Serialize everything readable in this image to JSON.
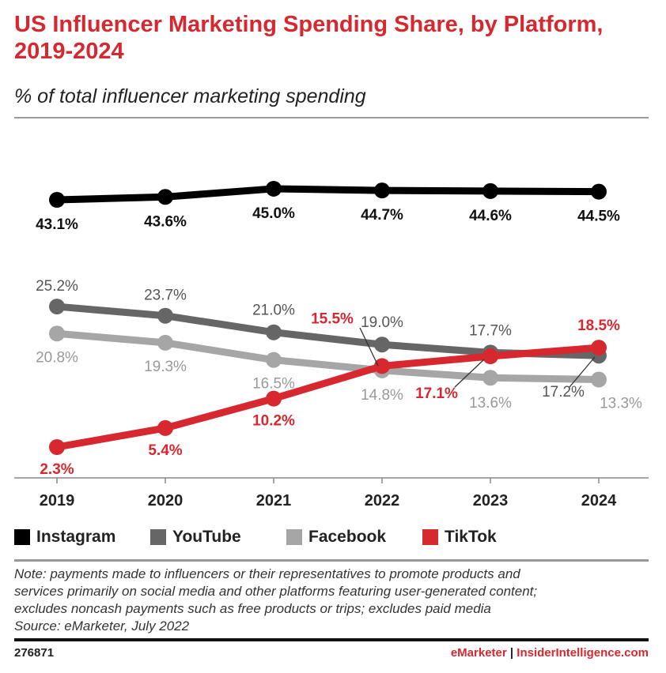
{
  "chart_data": {
    "type": "line",
    "title": "US Influencer Marketing Spending Share, by Platform, 2019-2024",
    "subtitle": "% of total influencer marketing spending",
    "categories": [
      "2019",
      "2020",
      "2021",
      "2022",
      "2023",
      "2024"
    ],
    "series": [
      {
        "name": "Instagram",
        "color": "#000000",
        "values": [
          43.1,
          43.6,
          45.0,
          44.7,
          44.6,
          44.5
        ],
        "labels": [
          "43.1%",
          "43.6%",
          "45.0%",
          "44.7%",
          "44.6%",
          "44.5%"
        ]
      },
      {
        "name": "YouTube",
        "color": "#666666",
        "values": [
          25.2,
          23.7,
          21.0,
          19.0,
          17.7,
          17.2
        ],
        "labels": [
          "25.2%",
          "23.7%",
          "21.0%",
          "19.0%",
          "17.7%",
          "17.2%"
        ]
      },
      {
        "name": "Facebook",
        "color": "#a6a6a6",
        "values": [
          20.8,
          19.3,
          16.5,
          14.8,
          13.6,
          13.3
        ],
        "labels": [
          "20.8%",
          "19.3%",
          "16.5%",
          "14.8%",
          "13.6%",
          "13.3%"
        ]
      },
      {
        "name": "TikTok",
        "color": "#d7282f",
        "values": [
          2.3,
          5.4,
          10.2,
          15.5,
          17.1,
          18.5
        ],
        "labels": [
          "2.3%",
          "5.4%",
          "10.2%",
          "15.5%",
          "17.1%",
          "18.5%"
        ]
      }
    ],
    "legend_position": "bottom",
    "grid": false,
    "axis_break": true
  },
  "note": [
    "Note: payments made to influencers or their representatives to promote products and",
    "services primarily on social media and other platforms featuring user-generated content;",
    "excludes noncash payments such as free products or trips; excludes paid media",
    "Source: eMarketer, July 2022"
  ],
  "footer": {
    "id": "276871",
    "brand": "eMarketer",
    "separator": "|",
    "site": "InsiderIntelligence.com"
  }
}
